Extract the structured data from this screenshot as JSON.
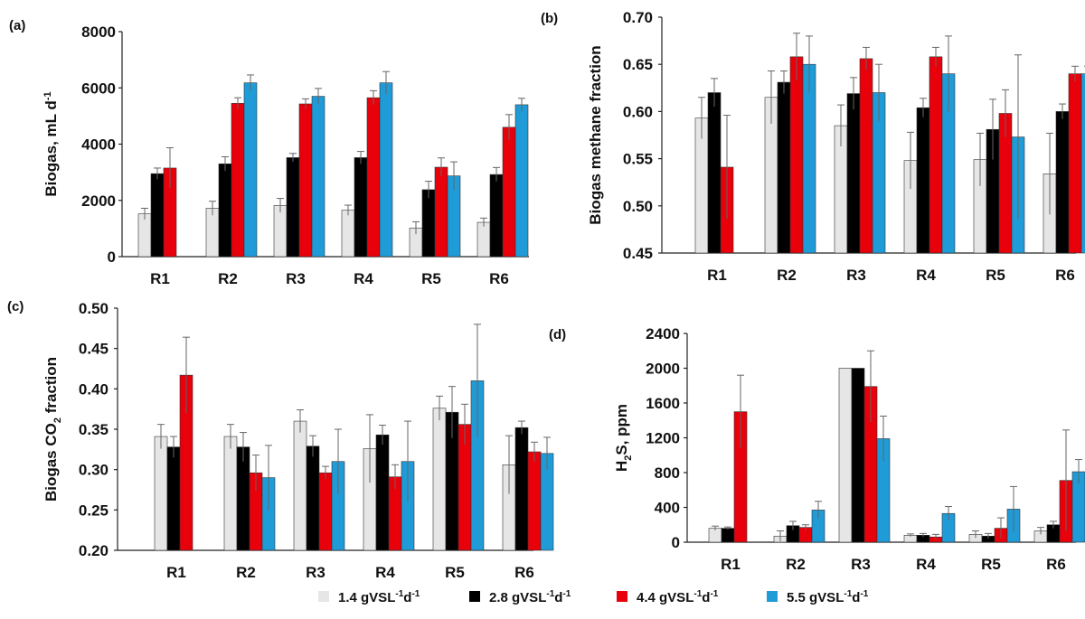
{
  "legend": {
    "items": [
      {
        "main": "1.4 gVSL",
        "sup1": "-1",
        "mid": "d",
        "sup2": "-1",
        "color": "#e6e6e6"
      },
      {
        "main": "2.8 gVSL",
        "sup1": "-1",
        "mid": "d",
        "sup2": "-1",
        "color": "#000000"
      },
      {
        "main": "4.4 gVSL",
        "sup1": "-1",
        "mid": "d",
        "sup2": "-1",
        "color": "#e8000b"
      },
      {
        "main": "5.5 gVSL",
        "sup1": "-1",
        "mid": "d",
        "sup2": "-1",
        "color": "#1f9bd8"
      }
    ]
  },
  "chart_data": [
    {
      "panel": "(a)",
      "type": "bar",
      "ylabel_main": "Biogas, mL d",
      "ylabel_sup": "-1",
      "ylim": [
        0,
        8000
      ],
      "yticks": [
        "0",
        "2000",
        "4000",
        "6000",
        "8000"
      ],
      "categories": [
        "R1",
        "R2",
        "R3",
        "R4",
        "R5",
        "R6"
      ],
      "series": [
        {
          "name": "1.4 gVSL-1d-1",
          "values": [
            1520,
            1720,
            1820,
            1650,
            1020,
            1220
          ],
          "errors": [
            200,
            250,
            250,
            180,
            220,
            150
          ]
        },
        {
          "name": "2.8 gVSL-1d-1",
          "values": [
            2950,
            3300,
            3520,
            3520,
            2380,
            2920
          ],
          "errors": [
            200,
            250,
            150,
            220,
            300,
            250
          ]
        },
        {
          "name": "4.4 gVSL-1d-1",
          "values": [
            3150,
            5450,
            5430,
            5650,
            3180,
            4600
          ],
          "errors": [
            720,
            200,
            180,
            250,
            330,
            450
          ]
        },
        {
          "name": "5.5 gVSL-1d-1",
          "values": [
            null,
            6180,
            5700,
            6180,
            2870,
            5400
          ],
          "errors": [
            null,
            280,
            280,
            400,
            500,
            230
          ]
        }
      ]
    },
    {
      "panel": "(b)",
      "type": "bar",
      "ylabel_main": "Biogas methane fraction",
      "ylim": [
        0.45,
        0.7
      ],
      "yticks": [
        "0.45",
        "0.50",
        "0.55",
        "0.60",
        "0.65",
        "0.70"
      ],
      "categories": [
        "R1",
        "R2",
        "R3",
        "R4",
        "R5",
        "R6"
      ],
      "series": [
        {
          "name": "1.4 gVSL-1d-1",
          "values": [
            0.593,
            0.615,
            0.585,
            0.548,
            0.549,
            0.534
          ],
          "errors": [
            0.022,
            0.028,
            0.022,
            0.03,
            0.028,
            0.043
          ]
        },
        {
          "name": "2.8 gVSL-1d-1",
          "values": [
            0.62,
            0.631,
            0.619,
            0.604,
            0.581,
            0.6
          ],
          "errors": [
            0.015,
            0.012,
            0.017,
            0.01,
            0.032,
            0.008
          ]
        },
        {
          "name": "4.4 gVSL-1d-1",
          "values": [
            0.541,
            0.658,
            0.656,
            0.658,
            0.598,
            0.64
          ],
          "errors": [
            0.055,
            0.025,
            0.012,
            0.01,
            0.025,
            0.008
          ]
        },
        {
          "name": "5.5 gVSL-1d-1",
          "values": [
            null,
            0.65,
            0.62,
            0.64,
            0.573,
            0.64
          ],
          "errors": [
            null,
            0.03,
            0.03,
            0.04,
            0.087,
            0.008
          ]
        }
      ]
    },
    {
      "panel": "(c)",
      "type": "bar",
      "ylabel_main": "Biogas CO",
      "ylabel_sub": "2",
      "ylabel_end": " fraction",
      "ylim": [
        0.2,
        0.5
      ],
      "yticks": [
        "0.20",
        "0.25",
        "0.30",
        "0.35",
        "0.40",
        "0.45",
        "0.50"
      ],
      "categories": [
        "R1",
        "R2",
        "R3",
        "R4",
        "R5",
        "R6"
      ],
      "series": [
        {
          "name": "1.4 gVSL-1d-1",
          "values": [
            0.341,
            0.341,
            0.36,
            0.326,
            0.376,
            0.306
          ],
          "errors": [
            0.015,
            0.015,
            0.014,
            0.042,
            0.015,
            0.036
          ]
        },
        {
          "name": "2.8 gVSL-1d-1",
          "values": [
            0.328,
            0.328,
            0.329,
            0.343,
            0.371,
            0.352
          ],
          "errors": [
            0.013,
            0.018,
            0.013,
            0.012,
            0.032,
            0.008
          ]
        },
        {
          "name": "4.4 gVSL-1d-1",
          "values": [
            0.417,
            0.296,
            0.296,
            0.291,
            0.356,
            0.322
          ],
          "errors": [
            0.047,
            0.022,
            0.008,
            0.015,
            0.025,
            0.012
          ]
        },
        {
          "name": "5.5 gVSL-1d-1",
          "values": [
            null,
            0.29,
            0.31,
            0.31,
            0.41,
            0.32
          ],
          "errors": [
            null,
            0.04,
            0.04,
            0.05,
            0.07,
            0.02
          ]
        }
      ]
    },
    {
      "panel": "(d)",
      "type": "bar",
      "ylabel_main": "H",
      "ylabel_sub": "2",
      "ylabel_end": "S, ppm",
      "ylim": [
        0,
        2400
      ],
      "yticks": [
        "0",
        "400",
        "800",
        "1200",
        "1600",
        "2000",
        "2400"
      ],
      "categories": [
        "R1",
        "R2",
        "R3",
        "R4",
        "R5",
        "R6"
      ],
      "series": [
        {
          "name": "1.4 gVSL-1d-1",
          "values": [
            160,
            70,
            2000,
            80,
            90,
            130
          ],
          "errors": [
            25,
            60,
            0,
            15,
            40,
            40
          ]
        },
        {
          "name": "2.8 gVSL-1d-1",
          "values": [
            160,
            190,
            2000,
            80,
            70,
            200
          ],
          "errors": [
            15,
            50,
            0,
            20,
            30,
            40
          ]
        },
        {
          "name": "4.4 gVSL-1d-1",
          "values": [
            1500,
            170,
            1790,
            60,
            160,
            710
          ],
          "errors": [
            420,
            30,
            410,
            30,
            120,
            580
          ]
        },
        {
          "name": "5.5 gVSL-1d-1",
          "values": [
            null,
            370,
            1190,
            330,
            380,
            810
          ],
          "errors": [
            null,
            100,
            260,
            80,
            260,
            140
          ]
        }
      ]
    }
  ]
}
